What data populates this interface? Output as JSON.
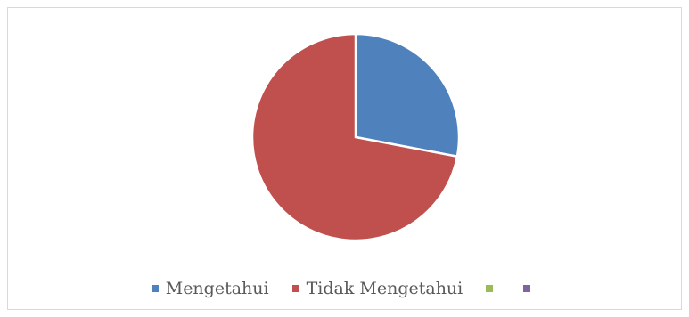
{
  "chart_data": {
    "type": "pie",
    "title": "",
    "categories": [
      "Mengetahui",
      "Tidak Mengetahui",
      "",
      ""
    ],
    "values": [
      28,
      72,
      0,
      0
    ],
    "colors": [
      "#4f81bd",
      "#c0504d",
      "#9bbb59",
      "#8064a2"
    ],
    "legend": "bottom"
  }
}
